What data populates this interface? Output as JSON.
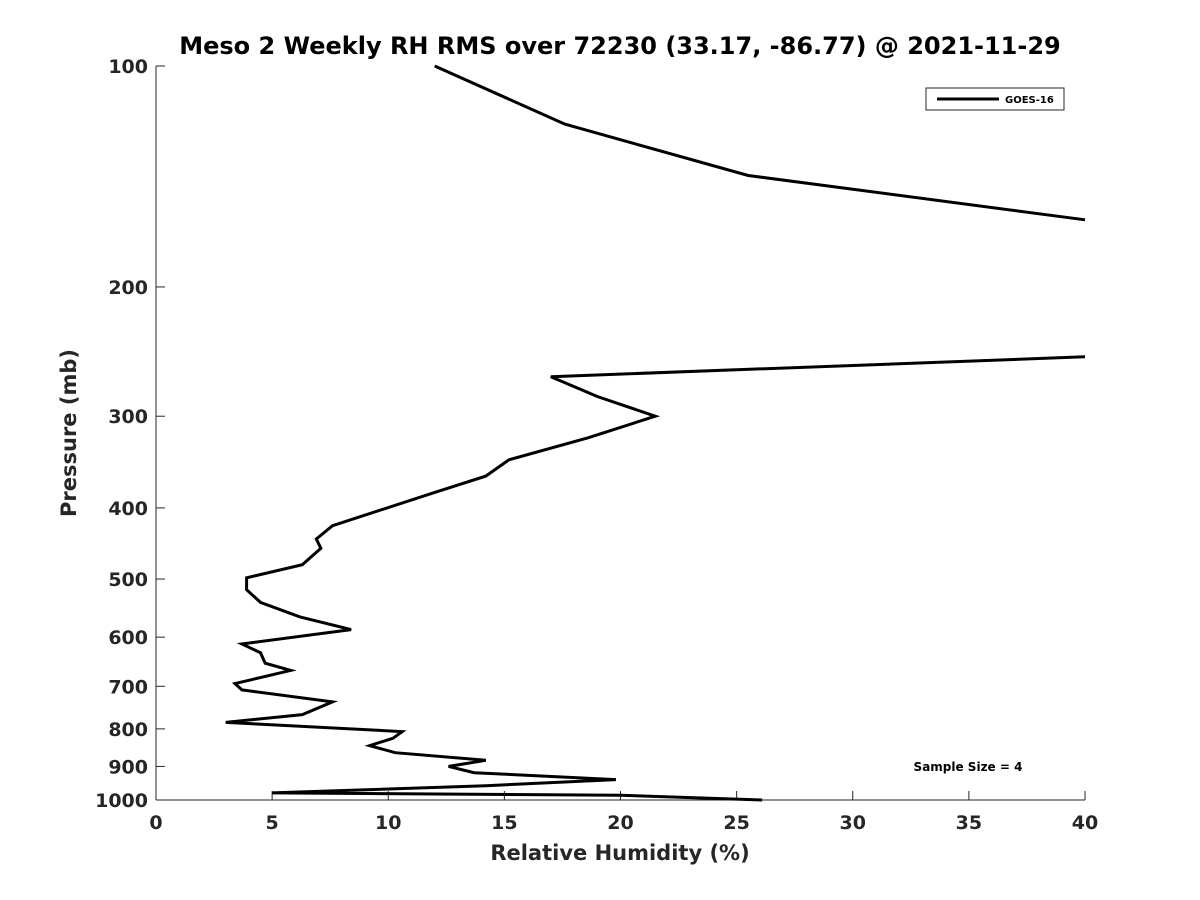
{
  "chart_data": {
    "type": "line",
    "title": "Meso 2 Weekly RH RMS over 72230 (33.17, -86.77) @ 2021-11-29",
    "xlabel": "Relative Humidity (%)",
    "ylabel": "Pressure (mb)",
    "xlim": [
      0,
      40
    ],
    "ylim": [
      100,
      1000
    ],
    "y_scale": "log",
    "y_reversed": true,
    "x_ticks": [
      "0",
      "5",
      "10",
      "15",
      "20",
      "25",
      "30",
      "35",
      "40"
    ],
    "y_ticks": [
      "100",
      "200",
      "300",
      "400",
      "500",
      "600",
      "700",
      "800",
      "900",
      "1000"
    ],
    "x_tick_values": [
      0,
      5,
      10,
      15,
      20,
      25,
      30,
      35,
      40
    ],
    "y_tick_values": [
      100,
      200,
      300,
      400,
      500,
      600,
      700,
      800,
      900,
      1000
    ],
    "grid": false,
    "legend": {
      "placement": "top-right",
      "entries": [
        "GOES-16"
      ]
    },
    "annotation": "Sample Size = 4",
    "series": [
      {
        "name": "GOES-16",
        "color": "#000000",
        "segments": [
          [
            [
              12.0,
              100
            ],
            [
              17.6,
              120
            ],
            [
              25.5,
              141
            ],
            [
              40.0,
              162
            ]
          ],
          [
            [
              40.0,
              249
            ],
            [
              17.0,
              265
            ],
            [
              19.0,
              282
            ],
            [
              21.5,
              300
            ],
            [
              18.6,
              321
            ],
            [
              15.2,
              344
            ],
            [
              14.2,
              362
            ],
            [
              12.0,
              381
            ],
            [
              7.6,
              423
            ],
            [
              6.9,
              441
            ],
            [
              7.1,
              454
            ],
            [
              6.3,
              478
            ],
            [
              3.9,
              498
            ],
            [
              3.9,
              517
            ],
            [
              4.5,
              538
            ],
            [
              6.2,
              563
            ],
            [
              8.4,
              586
            ],
            [
              3.7,
              613
            ],
            [
              4.5,
              630
            ],
            [
              4.7,
              651
            ],
            [
              5.8,
              666
            ],
            [
              3.4,
              694
            ],
            [
              3.7,
              708
            ],
            [
              7.6,
              735
            ],
            [
              6.3,
              765
            ],
            [
              3.0,
              784
            ],
            [
              10.6,
              807
            ],
            [
              10.2,
              824
            ],
            [
              9.2,
              843
            ],
            [
              10.3,
              862
            ],
            [
              14.2,
              883
            ],
            [
              12.6,
              900
            ],
            [
              13.7,
              918
            ],
            [
              19.8,
              938
            ],
            [
              14.2,
              956
            ],
            [
              5.0,
              978
            ],
            [
              20.0,
              985
            ],
            [
              26.1,
              1000
            ]
          ]
        ]
      }
    ]
  }
}
